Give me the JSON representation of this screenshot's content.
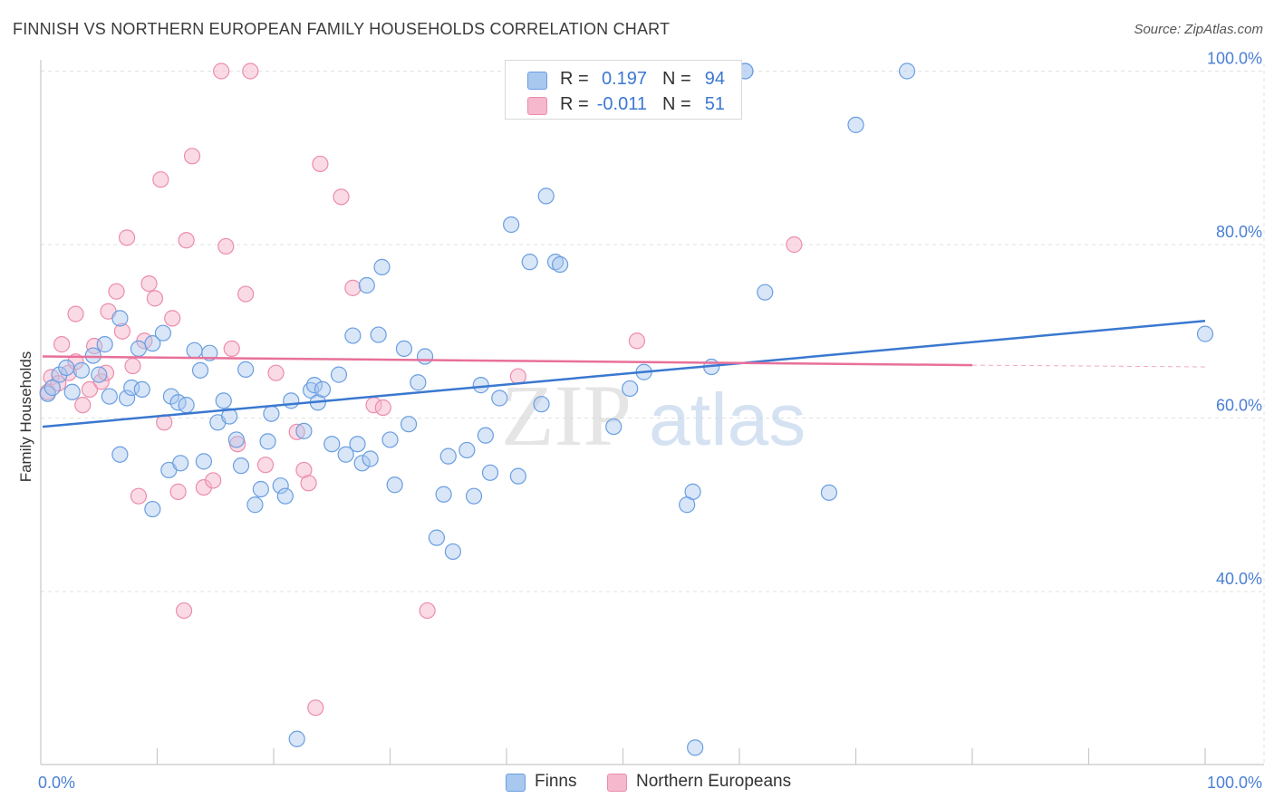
{
  "title": "FINNISH VS NORTHERN EUROPEAN FAMILY HOUSEHOLDS CORRELATION CHART",
  "source": "Source: ZipAtlas.com",
  "colors": {
    "finns_fill": "#a8c8f0",
    "finns_stroke": "#6a9ee0",
    "finns_line": "#3a78d0",
    "ne_fill": "#f6b8cc",
    "ne_stroke": "#ec8cac",
    "ne_line": "#e8709a",
    "tick_label": "#4a7fd4",
    "grid": "#e2e2e2"
  },
  "legend": {
    "rows": [
      {
        "series": "Finns",
        "r_label": "R =",
        "r_value": "0.197",
        "n_label": "N =",
        "n_value": "94"
      },
      {
        "series": "Northern Europeans",
        "r_label": "R =",
        "r_value": "-0.011",
        "n_label": "N =",
        "n_value": "51"
      }
    ]
  },
  "bottom_legend": [
    "Finns",
    "Northern Europeans"
  ],
  "watermark": {
    "part1": "ZIP",
    "part2": "atlas"
  },
  "chart_data": {
    "type": "scatter",
    "title": "FINNISH VS NORTHERN EUROPEAN FAMILY HOUSEHOLDS CORRELATION CHART",
    "xlabel": "",
    "ylabel": "Family Households",
    "xlim": [
      0,
      100
    ],
    "ylim": [
      20,
      102
    ],
    "x_tick_labels": [
      {
        "value": 0,
        "label": "0.0%"
      },
      {
        "value": 100,
        "label": "100.0%"
      }
    ],
    "y_tick_labels": [
      {
        "value": 40,
        "label": "40.0%"
      },
      {
        "value": 60,
        "label": "60.0%"
      },
      {
        "value": 80,
        "label": "80.0%"
      },
      {
        "value": 100,
        "label": "100.0%"
      }
    ],
    "y_gridlines": [
      40,
      60,
      80,
      100
    ],
    "x_minor_ticks": [
      10,
      20,
      30,
      40,
      50,
      60,
      70,
      80,
      90,
      100
    ],
    "series": [
      {
        "name": "Finns",
        "trend": {
          "x": [
            0,
            100
          ],
          "y": [
            59.0,
            71.2
          ]
        },
        "points": [
          [
            0.6,
            62.8
          ],
          [
            1.0,
            63.5
          ],
          [
            1.6,
            65.0
          ],
          [
            2.2,
            65.8
          ],
          [
            2.7,
            63.0
          ],
          [
            3.5,
            65.5
          ],
          [
            4.5,
            67.2
          ],
          [
            5.0,
            65.0
          ],
          [
            5.5,
            68.5
          ],
          [
            5.9,
            62.5
          ],
          [
            6.8,
            55.8
          ],
          [
            6.8,
            71.5
          ],
          [
            7.4,
            62.3
          ],
          [
            7.8,
            63.5
          ],
          [
            8.4,
            68.0
          ],
          [
            8.7,
            63.3
          ],
          [
            9.6,
            68.6
          ],
          [
            9.6,
            49.5
          ],
          [
            10.5,
            69.8
          ],
          [
            11.0,
            54.0
          ],
          [
            11.2,
            62.5
          ],
          [
            11.8,
            61.8
          ],
          [
            12.0,
            54.8
          ],
          [
            12.5,
            61.5
          ],
          [
            13.2,
            67.8
          ],
          [
            13.7,
            65.5
          ],
          [
            14.0,
            55.0
          ],
          [
            14.5,
            67.5
          ],
          [
            15.2,
            59.5
          ],
          [
            15.7,
            62.0
          ],
          [
            16.2,
            60.2
          ],
          [
            16.8,
            57.5
          ],
          [
            17.2,
            54.5
          ],
          [
            17.6,
            65.6
          ],
          [
            18.4,
            50.0
          ],
          [
            18.9,
            51.8
          ],
          [
            19.5,
            57.3
          ],
          [
            19.8,
            60.5
          ],
          [
            20.6,
            52.2
          ],
          [
            21.0,
            51.0
          ],
          [
            21.5,
            62.0
          ],
          [
            22.0,
            23.0
          ],
          [
            22.6,
            58.5
          ],
          [
            23.2,
            63.2
          ],
          [
            23.5,
            63.8
          ],
          [
            23.8,
            61.8
          ],
          [
            24.2,
            63.3
          ],
          [
            25.0,
            57.0
          ],
          [
            25.6,
            65.0
          ],
          [
            26.2,
            55.8
          ],
          [
            26.8,
            69.5
          ],
          [
            27.2,
            57.0
          ],
          [
            27.6,
            54.8
          ],
          [
            28.0,
            75.3
          ],
          [
            28.3,
            55.3
          ],
          [
            29.0,
            69.6
          ],
          [
            29.3,
            77.4
          ],
          [
            30.0,
            57.5
          ],
          [
            30.4,
            52.3
          ],
          [
            31.2,
            68.0
          ],
          [
            31.6,
            59.3
          ],
          [
            32.4,
            64.1
          ],
          [
            33.0,
            67.1
          ],
          [
            34.0,
            46.2
          ],
          [
            34.6,
            51.2
          ],
          [
            35.0,
            55.6
          ],
          [
            35.4,
            44.6
          ],
          [
            36.6,
            56.3
          ],
          [
            37.2,
            51.0
          ],
          [
            37.8,
            63.8
          ],
          [
            38.2,
            58.0
          ],
          [
            38.6,
            53.7
          ],
          [
            39.4,
            62.3
          ],
          [
            40.4,
            82.3
          ],
          [
            41.0,
            53.3
          ],
          [
            42.0,
            78.0
          ],
          [
            43.0,
            61.6
          ],
          [
            43.4,
            85.6
          ],
          [
            44.2,
            78.0
          ],
          [
            44.6,
            77.7
          ],
          [
            49.2,
            59.0
          ],
          [
            50.6,
            63.4
          ],
          [
            51.8,
            65.3
          ],
          [
            56.0,
            51.5
          ],
          [
            56.2,
            22.0
          ],
          [
            57.6,
            65.9
          ],
          [
            60.5,
            100.0
          ],
          [
            60.5,
            100.0
          ],
          [
            62.2,
            74.5
          ],
          [
            67.7,
            51.4
          ],
          [
            70.0,
            93.8
          ],
          [
            74.4,
            100.0
          ],
          [
            100.0,
            69.7
          ],
          [
            55.5,
            50.0
          ]
        ]
      },
      {
        "name": "Northern Europeans",
        "trend": {
          "x": [
            0,
            80
          ],
          "y": [
            67.1,
            66.1
          ]
        },
        "trend_dashed": {
          "x": [
            80,
            100
          ],
          "y": [
            66.1,
            65.9
          ]
        },
        "points": [
          [
            0.6,
            63.0
          ],
          [
            0.9,
            64.7
          ],
          [
            1.5,
            64.0
          ],
          [
            1.8,
            68.5
          ],
          [
            2.4,
            65.2
          ],
          [
            3.0,
            72.0
          ],
          [
            3.6,
            61.5
          ],
          [
            4.2,
            63.3
          ],
          [
            4.6,
            68.3
          ],
          [
            5.2,
            64.2
          ],
          [
            5.6,
            65.2
          ],
          [
            5.8,
            72.3
          ],
          [
            6.5,
            74.6
          ],
          [
            7.0,
            70.0
          ],
          [
            7.4,
            80.8
          ],
          [
            7.9,
            66.0
          ],
          [
            8.4,
            51.0
          ],
          [
            8.9,
            68.9
          ],
          [
            9.3,
            75.5
          ],
          [
            9.8,
            73.8
          ],
          [
            10.3,
            87.5
          ],
          [
            10.6,
            59.5
          ],
          [
            11.3,
            71.5
          ],
          [
            11.8,
            51.5
          ],
          [
            12.3,
            37.8
          ],
          [
            12.5,
            80.5
          ],
          [
            13.0,
            90.2
          ],
          [
            14.0,
            52.0
          ],
          [
            14.8,
            52.8
          ],
          [
            15.5,
            100.0
          ],
          [
            15.9,
            79.8
          ],
          [
            16.4,
            68.0
          ],
          [
            16.9,
            57.0
          ],
          [
            17.6,
            74.3
          ],
          [
            19.3,
            54.6
          ],
          [
            20.2,
            65.2
          ],
          [
            22.0,
            58.4
          ],
          [
            22.6,
            54.0
          ],
          [
            23.0,
            52.5
          ],
          [
            23.6,
            26.6
          ],
          [
            24.0,
            89.3
          ],
          [
            25.8,
            85.5
          ],
          [
            26.8,
            75.0
          ],
          [
            28.6,
            61.5
          ],
          [
            29.4,
            61.2
          ],
          [
            33.2,
            37.8
          ],
          [
            41.0,
            64.8
          ],
          [
            51.2,
            68.9
          ],
          [
            64.7,
            80.0
          ],
          [
            18.0,
            100.0
          ],
          [
            3.0,
            66.5
          ]
        ]
      }
    ]
  }
}
